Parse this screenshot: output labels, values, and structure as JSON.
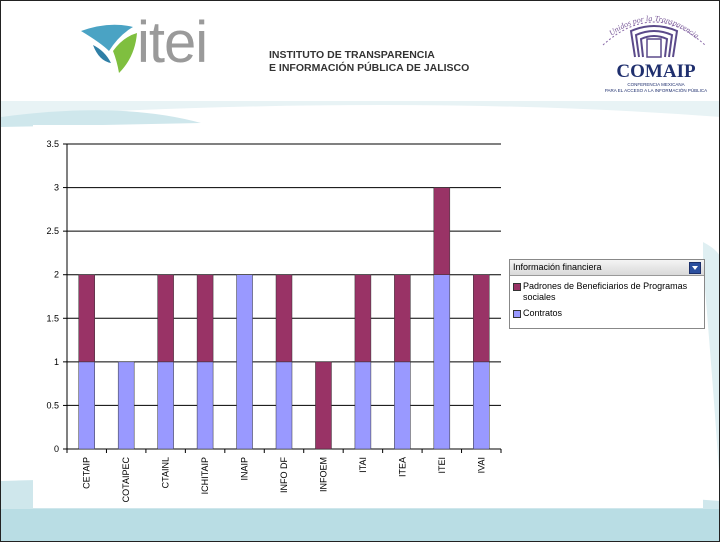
{
  "header": {
    "logo_text": "itei",
    "institute_line1": "INSTITUTO DE TRANSPARENCIA",
    "institute_line2": "E INFORMACIÓN PÚBLICA DE JALISCO",
    "comaip_motto": "Unidos por la Transparencia",
    "comaip_title": "COMAIP",
    "comaip_subtitle1": "CONFERENCIA MEXICANA",
    "comaip_subtitle2": "PARA EL ACCESO A LA INFORMACIÓN PÚBLICA"
  },
  "colors": {
    "padrones": "#993366",
    "contratos": "#9999ff",
    "grid": "#000000",
    "footer": "#b9dde4"
  },
  "legend": {
    "title": "Información financiera",
    "items": [
      {
        "label": "Padrones de Beneficiarios de Programas sociales",
        "color": "#993366"
      },
      {
        "label": "Contratos",
        "color": "#9999ff"
      }
    ]
  },
  "chart_data": {
    "type": "bar",
    "stacked": true,
    "categories": [
      "CETAIP",
      "COTAIPEC",
      "CTAINL",
      "ICHITAIP",
      "INAIP",
      "INFO DF",
      "INFOEM",
      "ITAI",
      "ITEA",
      "ITEI",
      "IVAI"
    ],
    "series": [
      {
        "name": "Contratos",
        "values": [
          1,
          1,
          1,
          1,
          2,
          1,
          0,
          1,
          1,
          2,
          1
        ]
      },
      {
        "name": "Padrones de Beneficiarios de Programas sociales",
        "values": [
          1,
          0,
          1,
          1,
          0,
          1,
          1,
          1,
          1,
          1,
          1
        ]
      }
    ],
    "ylim": [
      0,
      3.5
    ],
    "yticks": [
      "0",
      "0.5",
      "1",
      "1.5",
      "2",
      "2.5",
      "3",
      "3.5"
    ],
    "ytick_values": [
      0,
      0.5,
      1,
      1.5,
      2,
      2.5,
      3,
      3.5
    ],
    "grid": true,
    "legend_position": "right"
  }
}
